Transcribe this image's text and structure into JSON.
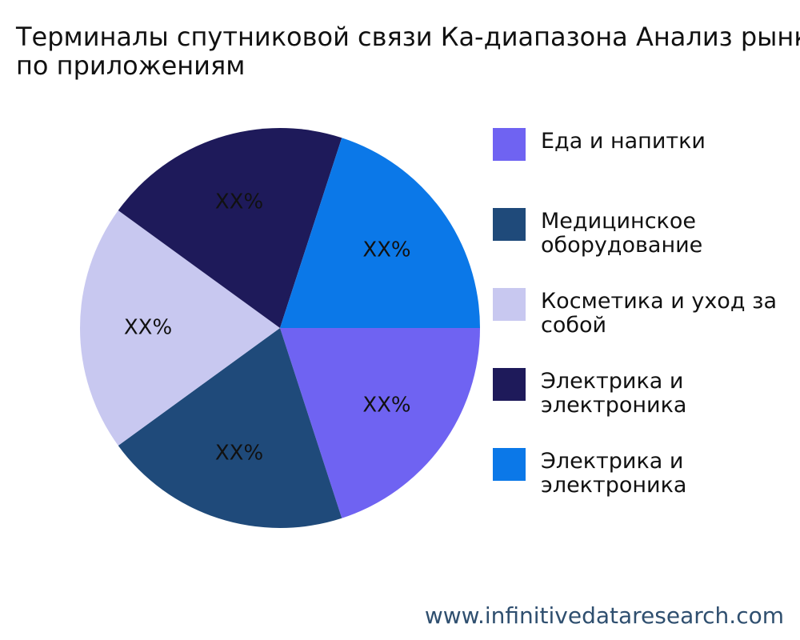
{
  "chart_data": {
    "type": "pie",
    "title": "Терминалы спутниковой связи Ка-диапазона Анализ рынка по приложениям",
    "categories": [
      "Еда и напитки",
      "Медицинское оборудование",
      "Косметика и уход за собой",
      "Электрика и электроника",
      "Электрика и электроника"
    ],
    "values": [
      20,
      20,
      20,
      20,
      20
    ],
    "value_labels": [
      "XX%",
      "XX%",
      "XX%",
      "XX%",
      "XX%"
    ],
    "colors": [
      "#6f63f2",
      "#1f4a7a",
      "#c8c8f0",
      "#1e1a5a",
      "#0b78e8"
    ],
    "source": "www.infinitivedataresearch.com"
  }
}
